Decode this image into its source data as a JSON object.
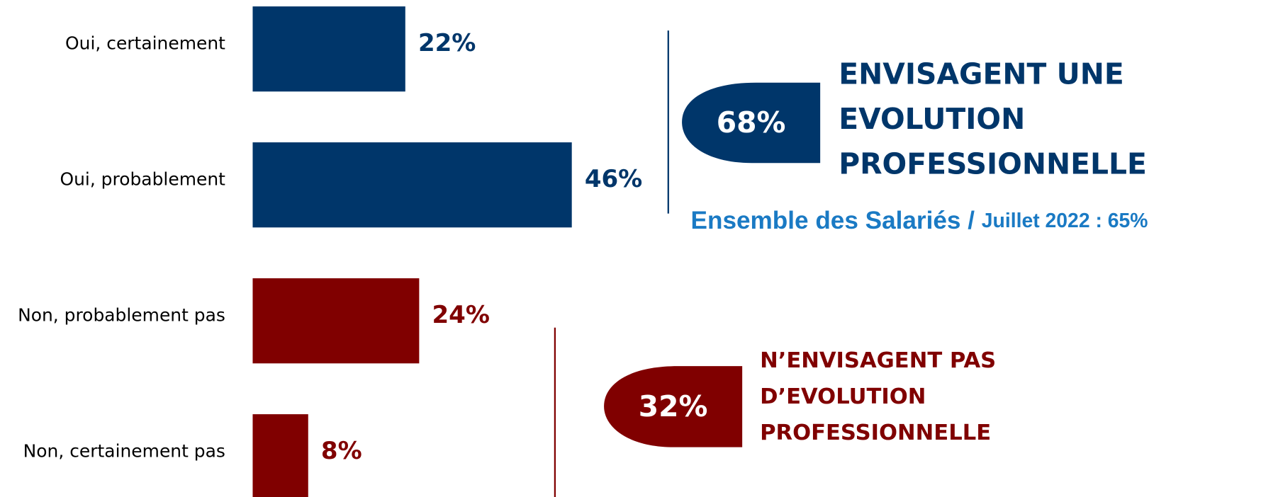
{
  "chart_data": {
    "type": "hbar",
    "categories": [
      "Oui, certainement",
      "Oui, probablement",
      "Non, probablement pas",
      "Non, certainement pas"
    ],
    "values": [
      22,
      46,
      24,
      8
    ],
    "value_labels": [
      "22%",
      "46%",
      "24%",
      "8%"
    ],
    "colors": [
      "#00366a",
      "#00366a",
      "#800000",
      "#800000"
    ],
    "xlim": [
      0,
      100
    ],
    "annotations": [
      {
        "value": "68%",
        "lines": [
          "ENVISAGENT UNE",
          "EVOLUTION",
          "PROFESSIONNELLE"
        ],
        "color": "#00366a"
      },
      {
        "value": "32%",
        "lines": [
          "N’ENVISAGENT PAS",
          "D’EVOLUTION",
          "PROFESSIONNELLE"
        ],
        "color": "#800000"
      }
    ],
    "note": [
      "Ensemble des Salariés / ",
      "Juillet 2022 : 65%"
    ],
    "note_color": "#1a7ac4"
  }
}
